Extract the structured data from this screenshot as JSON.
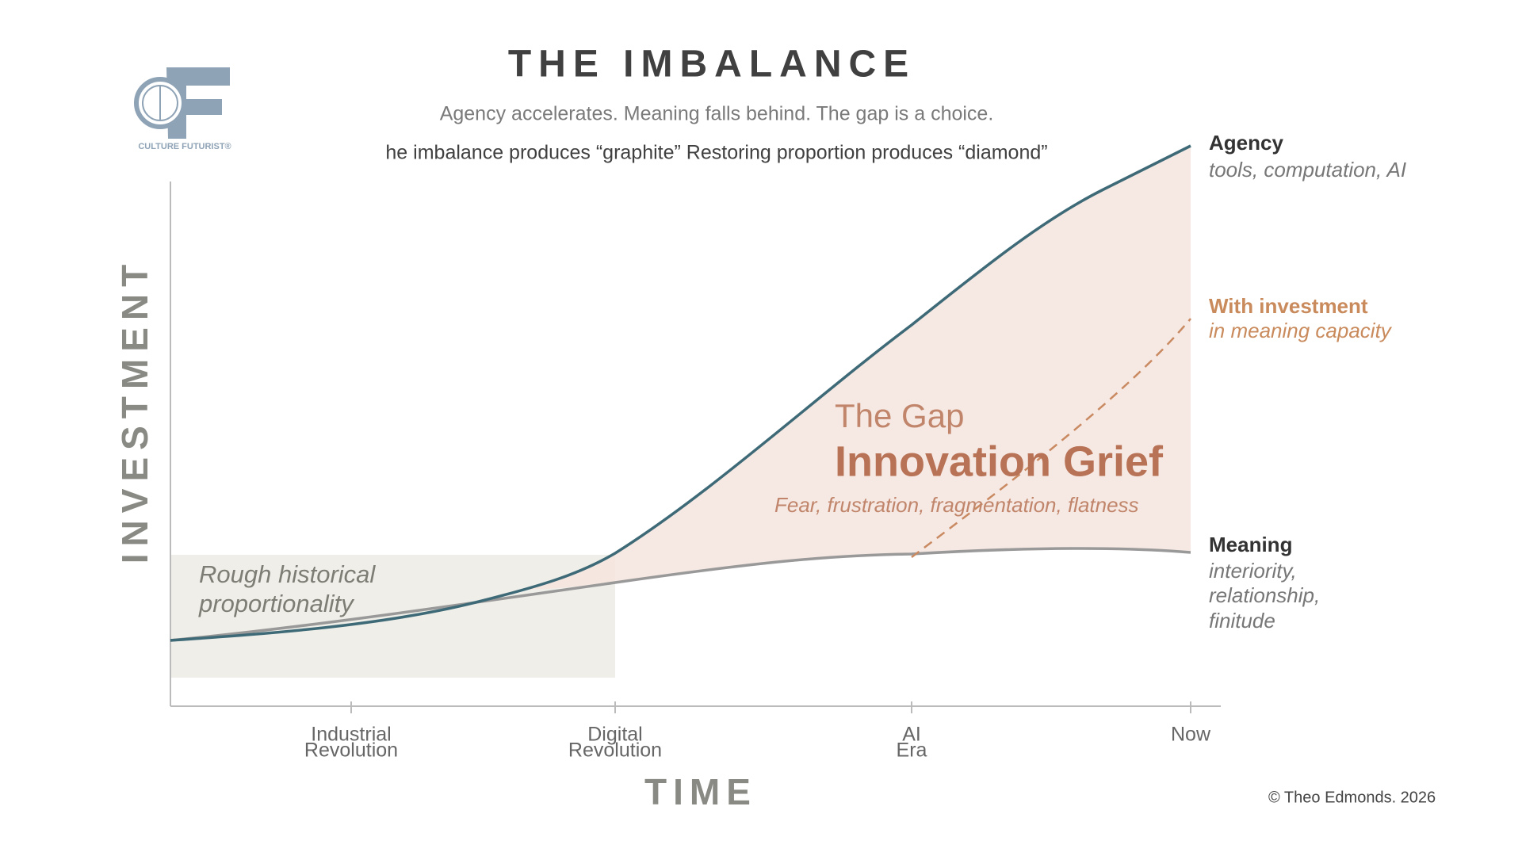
{
  "header": {
    "title": "THE IMBALANCE",
    "subtitle": "Agency accelerates. Meaning falls behind. The gap is a choice.",
    "note": "he imbalance produces “graphite”  Restoring proportion produces “diamond”"
  },
  "logo": {
    "text": "CULTURE FUTURIST®"
  },
  "axes": {
    "y_label": "INVESTMENT",
    "x_label": "TIME",
    "x_ticks": [
      [
        "Industrial",
        "Revolution"
      ],
      [
        "Digital",
        "Revolution"
      ],
      [
        "AI",
        "Era"
      ],
      [
        "Now"
      ]
    ]
  },
  "regions": {
    "historical": [
      "Rough historical",
      "proportionality"
    ],
    "gap": {
      "label": "The Gap",
      "title": "Innovation Grief",
      "description": "Fear, frustration, fragmentation, flatness"
    }
  },
  "lines": {
    "agency": {
      "name": "Agency",
      "description": "tools, computation, AI"
    },
    "investment": {
      "name": "With investment",
      "description": "in meaning capacity"
    },
    "meaning": {
      "name": "Meaning",
      "description": [
        "interiority,",
        "relationship,",
        "finitude"
      ]
    }
  },
  "footer": {
    "copyright": "©  Theo Edmonds. 2026"
  }
}
